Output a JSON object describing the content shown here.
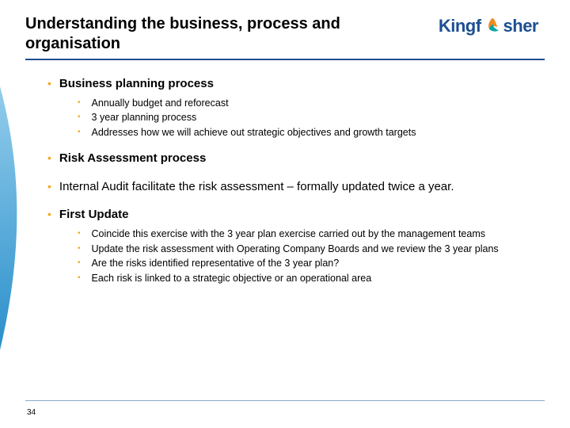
{
  "colors": {
    "brand_blue": "#1d4f91",
    "bullet_orange": "#f5a81c",
    "swoosh_light": "#9fd4f0",
    "swoosh_dark": "#0a7cc0",
    "bird_orange": "#f08a1f",
    "bird_teal": "#0aa5a5",
    "background": "#ffffff",
    "text": "#000000"
  },
  "title": "Understanding the business, process and organisation",
  "logo": {
    "part1": "Kingf",
    "part2": "sher"
  },
  "page_number": "34",
  "sections": [
    {
      "heading": "Business planning process",
      "bold": true,
      "sub": [
        "Annually budget and reforecast",
        "3 year planning process",
        "Addresses how we will achieve out strategic objectives and growth targets"
      ]
    },
    {
      "heading": "Risk Assessment process",
      "bold": true,
      "sub": []
    },
    {
      "heading": "Internal Audit facilitate the risk assessment – formally updated twice a year.",
      "bold": false,
      "sub": []
    },
    {
      "heading": "First Update",
      "bold": true,
      "sub": [
        "Coincide this exercise with the 3 year plan exercise carried out by the management teams",
        "Update the risk assessment with Operating Company Boards and we review the 3 year plans",
        "Are the risks identified representative of the 3 year plan?",
        "Each risk is linked to a strategic objective or an operational area"
      ]
    }
  ]
}
